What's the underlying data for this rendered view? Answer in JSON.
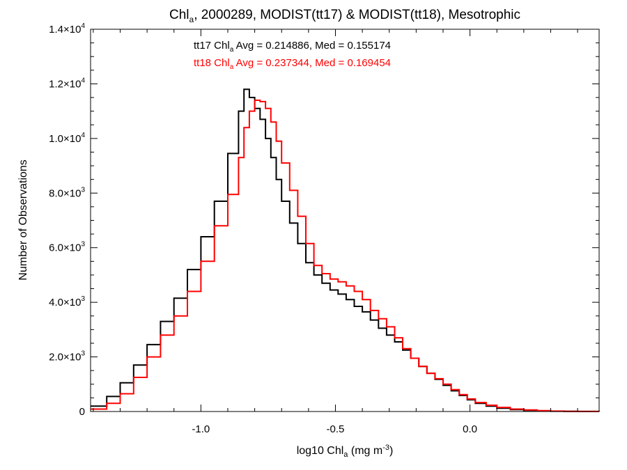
{
  "chart_data": {
    "type": "line",
    "title": {
      "main": "Chl",
      "main_sub": "a",
      "rest": ", 2000289, MODIST(tt17) & MODIST(tt18), Mesotrophic"
    },
    "xlabel": {
      "pre": "log10 Chl",
      "sub": "a",
      "mid": " (mg m",
      "sup": "-3",
      "post": ")"
    },
    "ylabel": "Number of Observations",
    "xlim": [
      -1.41,
      0.48
    ],
    "ylim": [
      0,
      14000
    ],
    "x_ticks": [
      {
        "value": -1.0,
        "label": "-1.0"
      },
      {
        "value": -0.5,
        "label": "-0.5"
      },
      {
        "value": 0.0,
        "label": "0.0"
      }
    ],
    "y_ticks": [
      {
        "value": 0,
        "mant": "0",
        "exp": ""
      },
      {
        "value": 2000,
        "mant": "2.0×10",
        "exp": "3"
      },
      {
        "value": 4000,
        "mant": "4.0×10",
        "exp": "3"
      },
      {
        "value": 6000,
        "mant": "6.0×10",
        "exp": "3"
      },
      {
        "value": 8000,
        "mant": "8.0×10",
        "exp": "3"
      },
      {
        "value": 10000,
        "mant": "1.0×10",
        "exp": "4"
      },
      {
        "value": 12000,
        "mant": "1.2×10",
        "exp": "4"
      },
      {
        "value": 14000,
        "mant": "1.4×10",
        "exp": "4"
      }
    ],
    "grid": false,
    "annotations": [
      {
        "pre": "tt17 Chl",
        "sub": "a",
        "post": " Avg = 0.214886, Med = 0.155174",
        "color": "#000000"
      },
      {
        "pre": "tt18 Chl",
        "sub": "a",
        "post": " Avg = 0.237344, Med = 0.169454",
        "color": "#ff0000"
      }
    ],
    "series": [
      {
        "color": "#000000",
        "step": true,
        "x": [
          -1.41,
          -1.35,
          -1.3,
          -1.25,
          -1.2,
          -1.15,
          -1.1,
          -1.05,
          -1.0,
          -0.95,
          -0.9,
          -0.86,
          -0.84,
          -0.82,
          -0.8,
          -0.78,
          -0.76,
          -0.74,
          -0.72,
          -0.7,
          -0.67,
          -0.64,
          -0.61,
          -0.58,
          -0.55,
          -0.52,
          -0.49,
          -0.46,
          -0.43,
          -0.4,
          -0.37,
          -0.34,
          -0.31,
          -0.28,
          -0.25,
          -0.22,
          -0.19,
          -0.16,
          -0.13,
          -0.1,
          -0.07,
          -0.04,
          -0.01,
          0.02,
          0.06,
          0.1,
          0.15,
          0.2,
          0.25,
          0.3,
          0.35,
          0.4,
          0.48
        ],
        "y": [
          200,
          550,
          1050,
          1700,
          2450,
          3300,
          4150,
          5200,
          6400,
          7700,
          9450,
          11000,
          11800,
          11500,
          11100,
          10700,
          10000,
          9300,
          8500,
          7700,
          6900,
          6150,
          5450,
          5000,
          4700,
          4450,
          4300,
          4100,
          3850,
          3650,
          3350,
          3050,
          2800,
          2550,
          2250,
          1950,
          1650,
          1400,
          1180,
          960,
          760,
          590,
          430,
          300,
          200,
          120,
          70,
          40,
          20,
          10,
          5,
          2,
          0
        ]
      },
      {
        "color": "#ff0000",
        "step": true,
        "x": [
          -1.41,
          -1.35,
          -1.3,
          -1.25,
          -1.2,
          -1.15,
          -1.1,
          -1.05,
          -1.0,
          -0.95,
          -0.9,
          -0.86,
          -0.84,
          -0.82,
          -0.8,
          -0.78,
          -0.76,
          -0.74,
          -0.72,
          -0.7,
          -0.67,
          -0.64,
          -0.61,
          -0.58,
          -0.55,
          -0.52,
          -0.49,
          -0.46,
          -0.43,
          -0.4,
          -0.37,
          -0.34,
          -0.31,
          -0.28,
          -0.25,
          -0.22,
          -0.19,
          -0.16,
          -0.13,
          -0.1,
          -0.07,
          -0.04,
          -0.01,
          0.02,
          0.06,
          0.1,
          0.15,
          0.2,
          0.25,
          0.3,
          0.35,
          0.4,
          0.48
        ],
        "y": [
          90,
          300,
          650,
          1250,
          2000,
          2800,
          3500,
          4400,
          5500,
          6800,
          7950,
          9300,
          10400,
          11000,
          11400,
          11350,
          11100,
          10600,
          9900,
          9100,
          8100,
          7150,
          6150,
          5350,
          5050,
          4850,
          4750,
          4600,
          4400,
          4100,
          3700,
          3400,
          3100,
          2700,
          2300,
          1950,
          1650,
          1400,
          1200,
          1000,
          800,
          620,
          460,
          330,
          230,
          150,
          90,
          55,
          30,
          15,
          7,
          3,
          0
        ]
      }
    ]
  }
}
